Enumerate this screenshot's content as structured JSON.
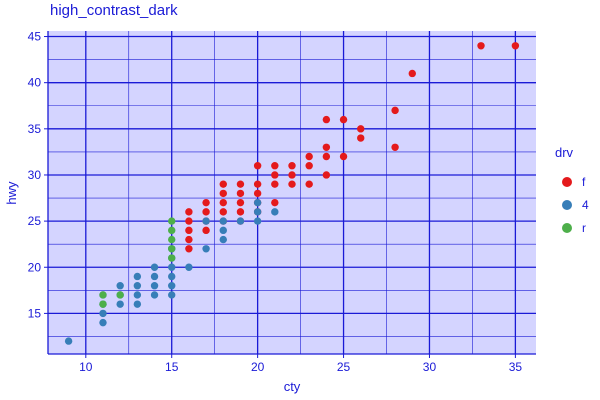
{
  "chart_data": {
    "type": "scatter",
    "title": "high_contrast_dark",
    "xlabel": "cty",
    "ylabel": "hwy",
    "xlim": [
      7.8,
      36.2
    ],
    "ylim": [
      10.6,
      45.6
    ],
    "x_ticks": [
      10,
      15,
      20,
      25,
      30,
      35
    ],
    "y_ticks": [
      15,
      20,
      25,
      30,
      35,
      40,
      45
    ],
    "grid": true,
    "legend": {
      "title": "drv",
      "position": "right"
    },
    "colors": {
      "panel_bg": "#d4d4ff",
      "grid": "#1a1ad6",
      "text": "#1a1ad6",
      "axis": "#1a1ad6"
    },
    "series": [
      {
        "name": "f",
        "color": "#e41a1c",
        "points": [
          [
            16,
            22
          ],
          [
            16,
            23
          ],
          [
            16,
            24
          ],
          [
            16,
            25
          ],
          [
            16,
            26
          ],
          [
            17,
            24
          ],
          [
            17,
            25
          ],
          [
            17,
            26
          ],
          [
            17,
            27
          ],
          [
            18,
            25
          ],
          [
            18,
            26
          ],
          [
            18,
            27
          ],
          [
            18,
            28
          ],
          [
            18,
            29
          ],
          [
            19,
            25
          ],
          [
            19,
            26
          ],
          [
            19,
            27
          ],
          [
            19,
            28
          ],
          [
            19,
            29
          ],
          [
            20,
            26
          ],
          [
            20,
            27
          ],
          [
            20,
            28
          ],
          [
            20,
            29
          ],
          [
            20,
            31
          ],
          [
            21,
            27
          ],
          [
            21,
            29
          ],
          [
            21,
            30
          ],
          [
            21,
            31
          ],
          [
            22,
            29
          ],
          [
            22,
            30
          ],
          [
            22,
            31
          ],
          [
            23,
            29
          ],
          [
            23,
            31
          ],
          [
            23,
            32
          ],
          [
            24,
            30
          ],
          [
            24,
            32
          ],
          [
            24,
            33
          ],
          [
            24,
            36
          ],
          [
            25,
            32
          ],
          [
            25,
            36
          ],
          [
            26,
            34
          ],
          [
            26,
            35
          ],
          [
            28,
            33
          ],
          [
            28,
            37
          ],
          [
            29,
            41
          ],
          [
            33,
            44
          ],
          [
            35,
            44
          ]
        ]
      },
      {
        "name": "4",
        "color": "#377eb8",
        "points": [
          [
            9,
            12
          ],
          [
            11,
            14
          ],
          [
            11,
            15
          ],
          [
            11,
            16
          ],
          [
            11,
            17
          ],
          [
            12,
            16
          ],
          [
            12,
            17
          ],
          [
            12,
            18
          ],
          [
            13,
            16
          ],
          [
            13,
            17
          ],
          [
            13,
            18
          ],
          [
            13,
            19
          ],
          [
            14,
            17
          ],
          [
            14,
            18
          ],
          [
            14,
            19
          ],
          [
            14,
            20
          ],
          [
            15,
            17
          ],
          [
            15,
            18
          ],
          [
            15,
            19
          ],
          [
            15,
            20
          ],
          [
            15,
            21
          ],
          [
            15,
            22
          ],
          [
            16,
            20
          ],
          [
            17,
            22
          ],
          [
            17,
            25
          ],
          [
            18,
            23
          ],
          [
            18,
            24
          ],
          [
            18,
            25
          ],
          [
            19,
            25
          ],
          [
            20,
            25
          ],
          [
            20,
            26
          ],
          [
            20,
            27
          ],
          [
            21,
            26
          ]
        ]
      },
      {
        "name": "r",
        "color": "#4daf4a",
        "points": [
          [
            11,
            16
          ],
          [
            11,
            17
          ],
          [
            12,
            17
          ],
          [
            15,
            21
          ],
          [
            15,
            22
          ],
          [
            15,
            23
          ],
          [
            15,
            24
          ],
          [
            15,
            25
          ]
        ]
      }
    ]
  }
}
